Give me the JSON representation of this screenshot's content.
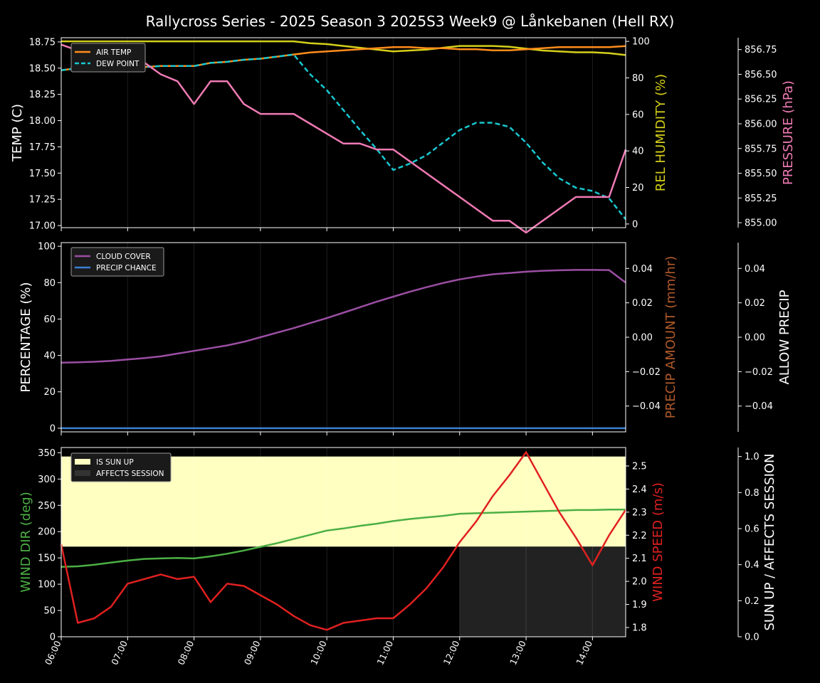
{
  "title": "Rallycross Series - 2025 Season 3 2025S3 Week9 @ Lånkebanen (Hell RX)",
  "x_tick_labels": [
    "06:00",
    "07:00",
    "08:00",
    "09:00",
    "10:00",
    "11:00",
    "12:00",
    "13:00",
    "14:00"
  ],
  "chart_data": [
    {
      "type": "line",
      "panel": "temperature-pressure-humidity",
      "x_hours": [
        6.0,
        6.25,
        6.5,
        6.75,
        7.0,
        7.25,
        7.5,
        7.75,
        8.0,
        8.25,
        8.5,
        8.75,
        9.0,
        9.25,
        9.5,
        9.75,
        10.0,
        10.25,
        10.5,
        10.75,
        11.0,
        11.25,
        11.5,
        11.75,
        12.0,
        12.25,
        12.5,
        12.75,
        13.0,
        13.25,
        13.5,
        13.75,
        14.0,
        14.25,
        14.5
      ],
      "left_axis": {
        "label": "TEMP (C)",
        "ylim": [
          16.98,
          18.79
        ],
        "ticks": [
          "17.00",
          "17.25",
          "17.50",
          "17.75",
          "18.00",
          "18.25",
          "18.50",
          "18.75"
        ]
      },
      "right_axis": {
        "label": "REL HUMIDITY (%)",
        "ylim": [
          -2,
          102
        ],
        "ticks": [
          "0",
          "20",
          "40",
          "60",
          "80",
          "100"
        ]
      },
      "pressure_axis": {
        "label": "PRESSURE (hPa)",
        "ylim": [
          854.95,
          856.87
        ],
        "ticks": [
          "855.00",
          "855.25",
          "855.50",
          "855.75",
          "856.00",
          "856.25",
          "856.50",
          "856.75"
        ]
      },
      "series": [
        {
          "name": "AIR TEMP",
          "axis": "left",
          "color": "#ff8c1a",
          "style": "solid",
          "values": [
            18.48,
            18.5,
            18.51,
            18.51,
            18.51,
            18.51,
            18.52,
            18.52,
            18.52,
            18.55,
            18.56,
            18.58,
            18.59,
            18.61,
            18.63,
            18.65,
            18.66,
            18.67,
            18.68,
            18.69,
            18.7,
            18.7,
            18.69,
            18.69,
            18.68,
            18.68,
            18.67,
            18.67,
            18.68,
            18.69,
            18.7,
            18.7,
            18.7,
            18.7,
            18.71
          ]
        },
        {
          "name": "DEW POINT",
          "axis": "left",
          "color": "#18c8d0",
          "style": "dashed",
          "values": [
            18.48,
            18.5,
            18.51,
            18.51,
            18.51,
            18.51,
            18.52,
            18.52,
            18.52,
            18.55,
            18.56,
            18.58,
            18.59,
            18.61,
            18.63,
            18.44,
            18.29,
            18.1,
            17.91,
            17.73,
            17.53,
            17.59,
            17.67,
            17.79,
            17.91,
            17.98,
            17.98,
            17.94,
            17.79,
            17.6,
            17.45,
            17.36,
            17.33,
            17.26,
            17.06
          ]
        },
        {
          "name": "REL HUMIDITY",
          "axis": "right",
          "color": "#d4cf1a",
          "style": "solid",
          "values": [
            100,
            100,
            100,
            100,
            100,
            100,
            100,
            100,
            100,
            100,
            100,
            100,
            100,
            100,
            100,
            99,
            98.5,
            97.5,
            96.5,
            95.5,
            94.5,
            95,
            95.5,
            96.5,
            97.5,
            97.5,
            97.5,
            97,
            96,
            95,
            94.5,
            94,
            94,
            93.5,
            92.5
          ]
        },
        {
          "name": "PRESSURE",
          "axis": "pressure",
          "color": "#f07ab4",
          "style": "solid",
          "values": [
            856.8,
            856.74,
            856.8,
            856.8,
            856.74,
            856.62,
            856.5,
            856.43,
            856.2,
            856.43,
            856.43,
            856.2,
            856.1,
            856.1,
            856.1,
            856.0,
            855.9,
            855.8,
            855.8,
            855.74,
            855.74,
            855.62,
            855.5,
            855.38,
            855.26,
            855.14,
            855.02,
            855.02,
            854.9,
            855.02,
            855.14,
            855.26,
            855.26,
            855.26,
            855.74
          ]
        }
      ]
    },
    {
      "type": "line",
      "panel": "cloud-precip",
      "left_axis": {
        "label": "PERCENTAGE (%)",
        "ylim": [
          -2,
          102
        ],
        "ticks": [
          "0",
          "20",
          "40",
          "60",
          "80",
          "100"
        ]
      },
      "right_axis": {
        "label": "PRECIP AMOUNT (mm/hr)",
        "ylim": [
          -0.055,
          0.055
        ],
        "ticks": [
          "−0.04",
          "−0.02",
          "0.00",
          "0.02",
          "0.04"
        ]
      },
      "far_right_axis": {
        "label": "ALLOW PRECIP",
        "ylim": [
          -0.055,
          0.055
        ],
        "ticks": [
          "−0.04",
          "−0.02",
          "0.00",
          "0.02",
          "0.04"
        ]
      },
      "series": [
        {
          "name": "CLOUD COVER",
          "axis": "left",
          "color": "#9b4ea3",
          "values": [
            36,
            36.2,
            36.5,
            37,
            37.8,
            38.5,
            39.5,
            41,
            42.5,
            44,
            45.5,
            47.5,
            50,
            52.5,
            55,
            57.8,
            60.5,
            63.5,
            66.5,
            69.5,
            72.3,
            75,
            77.5,
            79.8,
            81.8,
            83.3,
            84.6,
            85.3,
            86,
            86.5,
            86.8,
            87,
            87,
            86.9,
            80
          ]
        },
        {
          "name": "PRECIP CHANCE",
          "axis": "left",
          "color": "#3b7fd4",
          "values": [
            0,
            0,
            0,
            0,
            0,
            0,
            0,
            0,
            0,
            0,
            0,
            0,
            0,
            0,
            0,
            0,
            0,
            0,
            0,
            0,
            0,
            0,
            0,
            0,
            0,
            0,
            0,
            0,
            0,
            0,
            0,
            0,
            0,
            0,
            0
          ]
        }
      ]
    },
    {
      "type": "line",
      "panel": "wind-sun",
      "left_axis": {
        "label": "WIND DIR (deg)",
        "ylim": [
          0,
          360
        ],
        "ticks": [
          "0",
          "50",
          "100",
          "150",
          "200",
          "250",
          "300",
          "350"
        ]
      },
      "right_axis": {
        "label": "WIND SPEED (m/s)",
        "ylim": [
          1.76,
          2.58
        ],
        "ticks": [
          "1.8",
          "1.9",
          "2.0",
          "2.1",
          "2.2",
          "2.3",
          "2.4",
          "2.5"
        ]
      },
      "far_right_axis": {
        "label": "SUN UP / AFFECTS SESSION",
        "ylim": [
          0,
          1.05
        ],
        "ticks": [
          "0.0",
          "0.2",
          "0.4",
          "0.6",
          "0.8",
          "1.0"
        ]
      },
      "areas": [
        {
          "name": "IS SUN UP",
          "color": "#ffffc2",
          "value": 1.0,
          "from_hour": 6.0,
          "to_hour": 14.5,
          "note_lower_band_hidden": true
        },
        {
          "name": "AFFECTS SESSION",
          "color": "#222222",
          "value": 1.0,
          "from_hour": 12.0,
          "to_hour": 14.5
        }
      ],
      "series": [
        {
          "name": "WIND DIR",
          "axis": "left",
          "color": "#4caf44",
          "values": [
            133,
            134,
            137,
            141,
            145,
            148,
            149,
            150,
            149,
            153,
            158,
            164,
            171,
            178,
            186,
            194,
            202,
            206,
            211,
            215,
            220,
            224,
            227,
            230,
            234,
            235,
            236,
            237,
            238,
            239,
            240,
            241,
            241,
            242,
            242
          ]
        },
        {
          "name": "WIND SPEED",
          "axis": "right",
          "color": "#e02020",
          "values": [
            2.16,
            1.82,
            1.84,
            1.89,
            1.99,
            2.01,
            2.03,
            2.01,
            2.02,
            1.91,
            1.99,
            1.98,
            1.94,
            1.9,
            1.85,
            1.81,
            1.79,
            1.82,
            1.83,
            1.84,
            1.84,
            1.9,
            1.97,
            2.06,
            2.17,
            2.26,
            2.37,
            2.46,
            2.56,
            2.43,
            2.3,
            2.19,
            2.07,
            2.2,
            2.31
          ]
        }
      ]
    }
  ]
}
